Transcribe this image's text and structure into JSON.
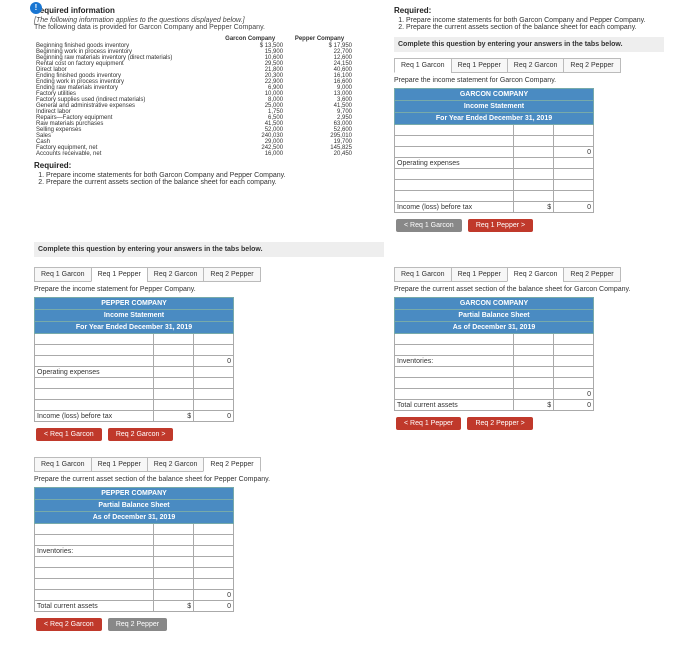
{
  "icon": "!",
  "req_info_heading": "Required information",
  "applies_note": "[The following information applies to the questions displayed below.]",
  "intro": "The following data is provided for Garcon Company and Pepper Company.",
  "data_table": {
    "col1": "Garcon Company",
    "col2": "Pepper Company",
    "rows": [
      [
        "Beginning finished goods inventory",
        "$ 13,500",
        "$ 17,950"
      ],
      [
        "Beginning work in process inventory",
        "15,900",
        "22,700"
      ],
      [
        "Beginning raw materials inventory (direct materials)",
        "10,600",
        "12,600"
      ],
      [
        "Rental cost on factory equipment",
        "29,500",
        "24,150"
      ],
      [
        "Direct labor",
        "21,800",
        "40,600"
      ],
      [
        "Ending finished goods inventory",
        "20,300",
        "16,100"
      ],
      [
        "Ending work in process inventory",
        "22,900",
        "16,600"
      ],
      [
        "Ending raw materials inventory",
        "6,900",
        "9,000"
      ],
      [
        "Factory utilities",
        "10,000",
        "13,000"
      ],
      [
        "Factory supplies used (indirect materials)",
        "8,000",
        "3,600"
      ],
      [
        "General and administrative expenses",
        "25,000",
        "41,500"
      ],
      [
        "Indirect labor",
        "1,750",
        "9,700"
      ],
      [
        "Repairs—Factory equipment",
        "6,500",
        "2,950"
      ],
      [
        "Raw materials purchases",
        "41,500",
        "63,000"
      ],
      [
        "Selling expenses",
        "52,000",
        "52,600"
      ],
      [
        "Sales",
        "240,030",
        "295,010"
      ],
      [
        "Cash",
        "29,000",
        "19,700"
      ],
      [
        "Factory equipment, net",
        "242,500",
        "145,825"
      ],
      [
        "Accounts receivable, net",
        "16,000",
        "20,450"
      ]
    ]
  },
  "required_heading": "Required:",
  "req1": "Prepare income statements for both Garcon Company and Pepper Company.",
  "req2": "Prepare the current assets section of the balance sheet for each company.",
  "tabs_note": "Complete this question by entering your answers in the tabs below.",
  "tabs": [
    "Req 1 Garcon",
    "Req 1 Pepper",
    "Req 2 Garcon",
    "Req 2 Pepper"
  ],
  "garcon_is": {
    "prompt": "Prepare the income statement for Garcon Company.",
    "h1": "GARCON COMPANY",
    "h2": "Income Statement",
    "h3": "For Year Ended December 31, 2019",
    "op_exp": "Operating expenses",
    "inc_before": "Income (loss) before tax",
    "amt0": "0",
    "amtS": "$",
    "nav_prev": "< Req 1 Garcon",
    "nav_next": "Req 1 Pepper >"
  },
  "pepper_is": {
    "prompt": "Prepare the income statement for Pepper Company.",
    "h1": "PEPPER COMPANY",
    "h2": "Income Statement",
    "h3": "For Year Ended December 31, 2019",
    "op_exp": "Operating expenses",
    "inc_before": "Income (loss) before tax",
    "nav_prev": "< Req 1 Garcon",
    "nav_next": "Req 2 Garcon >"
  },
  "garcon_bs": {
    "prompt": "Prepare the current asset section of the balance sheet for Garcon Company.",
    "h1": "GARCON COMPANY",
    "h2": "Partial Balance Sheet",
    "h3": "As of December 31, 2019",
    "inv": "Inventories:",
    "tca": "Total current assets",
    "nav_prev": "< Req 1 Pepper",
    "nav_next": "Req 2 Pepper >"
  },
  "pepper_bs": {
    "prompt": "Prepare the current asset section of the balance sheet for Pepper Company.",
    "h1": "PEPPER COMPANY",
    "h2": "Partial Balance Sheet",
    "h3": "As of December 31, 2019",
    "inv": "Inventories:",
    "tca": "Total current assets",
    "nav_prev": "< Req 2 Garcon",
    "nav_next": "Req 2 Pepper"
  }
}
